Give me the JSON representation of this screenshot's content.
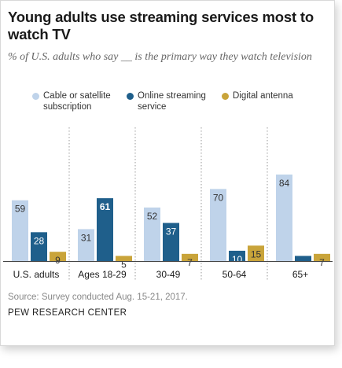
{
  "chart_data": {
    "type": "bar",
    "title": "Young adults use streaming services most to watch TV",
    "subtitle": "% of U.S. adults who say __ is the primary way they watch television",
    "categories": [
      "U.S. adults",
      "Ages 18-29",
      "30-49",
      "50-64",
      "65+"
    ],
    "series": [
      {
        "name": "Cable or satellite subscription",
        "values": [
          59,
          31,
          52,
          70,
          84
        ],
        "color": "#bfd3ea",
        "label_color": "#333333"
      },
      {
        "name": "Online streaming service",
        "values": [
          28,
          61,
          37,
          10,
          5
        ],
        "color": "#1f5f8b",
        "label_color": "#ffffff"
      },
      {
        "name": "Digital antenna",
        "values": [
          9,
          5,
          7,
          15,
          7
        ],
        "color": "#c9a43a",
        "label_color": "#333333"
      }
    ],
    "bold_labels": [
      [
        1,
        1
      ]
    ],
    "ylim": [
      0,
      100
    ],
    "grid": false,
    "legend_position": "top",
    "source": "Source: Survey conducted Aug. 15-21, 2017.",
    "organization": "PEW RESEARCH CENTER"
  }
}
